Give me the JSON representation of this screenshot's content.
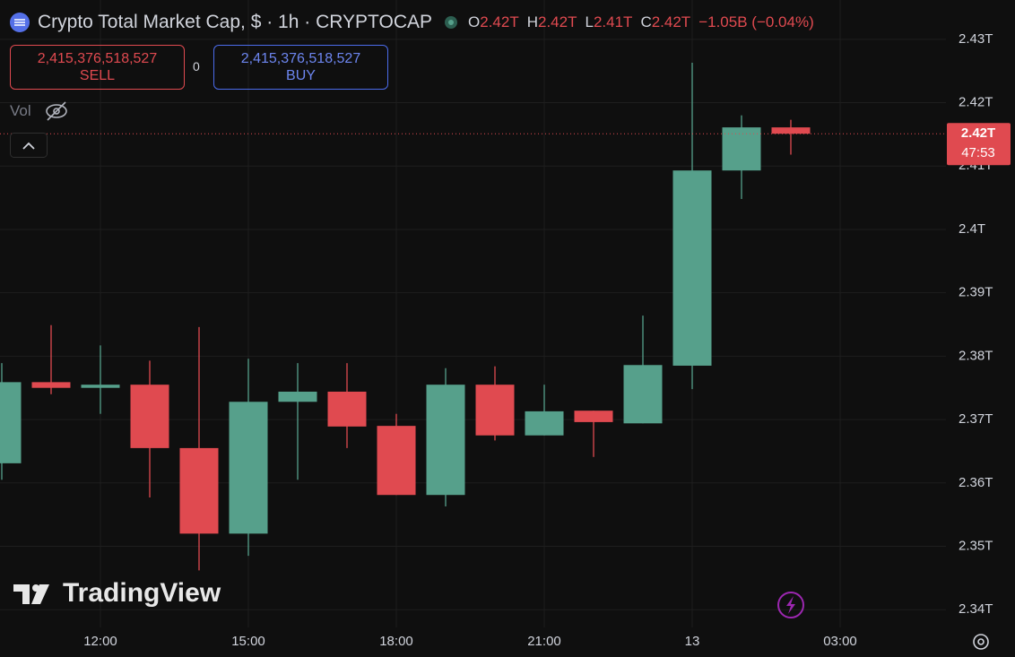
{
  "header": {
    "title": "Crypto Total Market Cap, $ · 1h · CRYPTOCAP",
    "ohlc": [
      {
        "key": "O",
        "value": "2.42T"
      },
      {
        "key": "H",
        "value": "2.42T"
      },
      {
        "key": "L",
        "value": "2.41T"
      },
      {
        "key": "C",
        "value": "2.42T"
      }
    ],
    "change": "−1.05B (−0.04%)"
  },
  "trade_panel": {
    "sell_price": "2,415,376,518,527",
    "sell_label": "SELL",
    "spread": "0",
    "buy_price": "2,415,376,518,527",
    "buy_label": "BUY"
  },
  "volume_label": "Vol",
  "price_badge": {
    "price": "2.42T",
    "countdown": "47:53"
  },
  "logo": "TradingView",
  "chart_data": {
    "type": "candlestick",
    "categories": [
      null,
      null,
      "12:00",
      null,
      null,
      "15:00",
      null,
      null,
      "18:00",
      null,
      null,
      "21:00",
      null,
      null,
      "13",
      null,
      null,
      "03:00"
    ],
    "open": [
      2.3631,
      2.3759,
      2.375,
      2.3755,
      2.3655,
      2.352,
      2.3728,
      2.3744,
      2.369,
      2.3581,
      2.3755,
      2.3675,
      2.3714,
      2.3694,
      2.3785,
      2.4093,
      2.4161,
      null
    ],
    "high": [
      2.3789,
      2.3849,
      2.3817,
      2.3793,
      2.3846,
      2.3796,
      2.3789,
      2.3789,
      2.3709,
      2.3781,
      2.3784,
      2.3755,
      2.3714,
      2.3864,
      2.4263,
      2.418,
      2.4173,
      null
    ],
    "low": [
      2.3605,
      2.374,
      2.3709,
      2.3577,
      2.3462,
      2.3485,
      2.3605,
      2.3655,
      2.3581,
      2.3563,
      2.3667,
      2.3675,
      2.3641,
      2.3694,
      2.3748,
      2.4048,
      2.4118,
      null
    ],
    "close": [
      2.3759,
      2.375,
      2.3755,
      2.3655,
      2.352,
      2.3728,
      2.3744,
      2.3689,
      2.3581,
      2.3755,
      2.3675,
      2.3713,
      2.3696,
      2.3786,
      2.4093,
      2.4161,
      2.4151,
      null
    ],
    "up_color": "#56a08b",
    "down_color": "#e04a50",
    "ylim": [
      2.3372,
      2.4362
    ],
    "yticks": [
      {
        "value": 2.34,
        "label": "2.34T"
      },
      {
        "value": 2.35,
        "label": "2.35T"
      },
      {
        "value": 2.36,
        "label": "2.36T"
      },
      {
        "value": 2.37,
        "label": "2.37T"
      },
      {
        "value": 2.38,
        "label": "2.38T"
      },
      {
        "value": 2.39,
        "label": "2.39T"
      },
      {
        "value": 2.4,
        "label": "2.4T"
      },
      {
        "value": 2.41,
        "label": "2.41T"
      },
      {
        "value": 2.42,
        "label": "2.42T"
      },
      {
        "value": 2.43,
        "label": "2.43T"
      }
    ],
    "grid": true
  }
}
